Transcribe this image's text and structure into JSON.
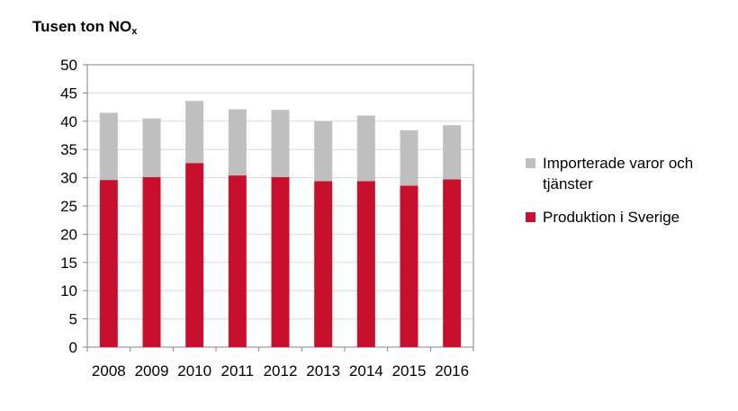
{
  "chart_data": {
    "type": "bar",
    "stacked": true,
    "title": "",
    "ylabel_main": "Tusen ton NO",
    "ylabel_sub": "x",
    "xlabel": "",
    "categories": [
      "2008",
      "2009",
      "2010",
      "2011",
      "2012",
      "2013",
      "2014",
      "2015",
      "2016"
    ],
    "ylim": [
      0,
      50
    ],
    "yticks": [
      0,
      5,
      10,
      15,
      20,
      25,
      30,
      35,
      40,
      45,
      50
    ],
    "grid": true,
    "legend_position": "right",
    "series": [
      {
        "name": "Produktion i Sverige",
        "color": "#C8102E",
        "values": [
          29.6,
          30.1,
          32.6,
          30.4,
          30.1,
          29.4,
          29.4,
          28.6,
          29.7
        ]
      },
      {
        "name": "Importerade varor och tjänster",
        "color": "#BFBFBF",
        "values": [
          11.9,
          10.4,
          11.0,
          11.7,
          11.9,
          10.6,
          11.6,
          9.8,
          9.6
        ]
      }
    ]
  }
}
